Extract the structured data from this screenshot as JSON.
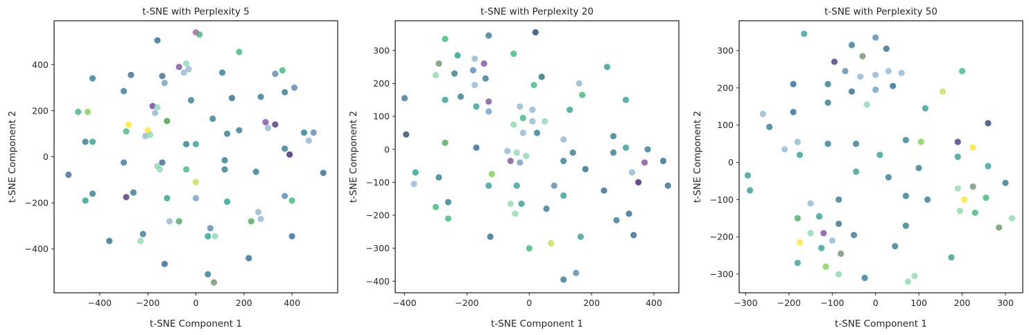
{
  "chart_data": [
    {
      "type": "scatter",
      "title": "t-SNE with Perplexity 5",
      "xlabel": "t-SNE Component 1",
      "ylabel": "t-SNE Component 2",
      "xlim": [
        -590,
        590
      ],
      "ylim": [
        -590,
        590
      ],
      "xticks": [
        -400,
        -200,
        0,
        200,
        400
      ],
      "yticks": [
        -400,
        -200,
        0,
        200,
        400
      ],
      "grid": false,
      "colormap": "viridis",
      "points": [
        [
          -530,
          -78,
          "#31688e"
        ],
        [
          -430,
          340,
          "#2a788e"
        ],
        [
          -490,
          195,
          "#35b779"
        ],
        [
          -450,
          195,
          "#7ad151"
        ],
        [
          -460,
          65,
          "#2a788e"
        ],
        [
          -430,
          65,
          "#2a9d8f"
        ],
        [
          -430,
          -160,
          "#2a788e"
        ],
        [
          -460,
          -190,
          "#1fa187"
        ],
        [
          -360,
          -365,
          "#26678e"
        ],
        [
          -300,
          285,
          "#2a788e"
        ],
        [
          -300,
          -25,
          "#2a788e"
        ],
        [
          -290,
          110,
          "#35b779"
        ],
        [
          -280,
          140,
          "#fde725"
        ],
        [
          -270,
          355,
          "#31688e"
        ],
        [
          -260,
          -155,
          "#2a788e"
        ],
        [
          -290,
          -175,
          "#46337e"
        ],
        [
          -210,
          90,
          "#8fb6d0"
        ],
        [
          -200,
          115,
          "#fde725"
        ],
        [
          -190,
          95,
          "#8ad9b0"
        ],
        [
          -180,
          220,
          "#6a3d9a"
        ],
        [
          -170,
          190,
          "#8fb6d0"
        ],
        [
          -160,
          505,
          "#26678e"
        ],
        [
          -140,
          350,
          "#31688e"
        ],
        [
          -130,
          320,
          "#6d9cc0"
        ],
        [
          -160,
          215,
          "#8ad9b0"
        ],
        [
          -160,
          -40,
          "#8ad9b0"
        ],
        [
          -150,
          -55,
          "#8ad9b0"
        ],
        [
          -140,
          -25,
          "#31688e"
        ],
        [
          -120,
          155,
          "#3a9d3a"
        ],
        [
          -120,
          -180,
          "#1fa187"
        ],
        [
          -130,
          -465,
          "#26678e"
        ],
        [
          -110,
          -280,
          "#8fb6d0"
        ],
        [
          -220,
          -335,
          "#2a788e"
        ],
        [
          -230,
          -365,
          "#8ad9b0"
        ],
        [
          -70,
          -280,
          "#3fa85a"
        ],
        [
          -40,
          405,
          "#8ad9b0"
        ],
        [
          -70,
          390,
          "#7b4a9c"
        ],
        [
          -50,
          365,
          "#8fb6d0"
        ],
        [
          -30,
          380,
          "#8fb6d0"
        ],
        [
          -20,
          245,
          "#2a788e"
        ],
        [
          -40,
          55,
          "#2a788e"
        ],
        [
          -40,
          -55,
          "#35b779"
        ],
        [
          0,
          540,
          "#a3608b"
        ],
        [
          15,
          530,
          "#35b779"
        ],
        [
          0,
          55,
          "#2a9d8f"
        ],
        [
          0,
          -110,
          "#c9dd4a"
        ],
        [
          0,
          -180,
          "#6d9cc0"
        ],
        [
          60,
          -310,
          "#5585ad"
        ],
        [
          50,
          -345,
          "#1fa187"
        ],
        [
          80,
          -345,
          "#8ad9b0"
        ],
        [
          50,
          -510,
          "#2a788e"
        ],
        [
          75,
          -545,
          "#6a8f6a"
        ],
        [
          70,
          165,
          "#2a788e"
        ],
        [
          110,
          365,
          "#2a788e"
        ],
        [
          130,
          100,
          "#2a788e"
        ],
        [
          120,
          -15,
          "#2a788e"
        ],
        [
          120,
          -55,
          "#2a788e"
        ],
        [
          130,
          -195,
          "#1fa187"
        ],
        [
          150,
          255,
          "#26678e"
        ],
        [
          180,
          455,
          "#35b779"
        ],
        [
          180,
          115,
          "#2a788e"
        ],
        [
          220,
          -440,
          "#26678e"
        ],
        [
          230,
          -280,
          "#3fa85a"
        ],
        [
          250,
          -65,
          "#2a788e"
        ],
        [
          260,
          -240,
          "#8fb6d0"
        ],
        [
          270,
          -270,
          "#8fb6d0"
        ],
        [
          270,
          260,
          "#2a788e"
        ],
        [
          290,
          150,
          "#7b4a9c"
        ],
        [
          300,
          125,
          "#8fb6d0"
        ],
        [
          330,
          140,
          "#46337e"
        ],
        [
          330,
          360,
          "#5585ad"
        ],
        [
          360,
          375,
          "#35b779"
        ],
        [
          370,
          280,
          "#2a788e"
        ],
        [
          370,
          35,
          "#2a788e"
        ],
        [
          370,
          -170,
          "#5585ad"
        ],
        [
          390,
          10,
          "#3b1e6e"
        ],
        [
          400,
          -190,
          "#35b779"
        ],
        [
          400,
          -345,
          "#26678e"
        ],
        [
          410,
          300,
          "#5585ad"
        ],
        [
          450,
          105,
          "#2a788e"
        ],
        [
          470,
          70,
          "#8fb6d0"
        ],
        [
          490,
          105,
          "#5585ad"
        ],
        [
          530,
          -70,
          "#26678e"
        ]
      ]
    },
    {
      "type": "scatter",
      "title": "t-SNE with Perplexity 20",
      "xlabel": "t-SNE Component 1",
      "ylabel": "t-SNE Component 2",
      "xlim": [
        -430,
        480
      ],
      "ylim": [
        -435,
        390
      ],
      "xticks": [
        -400,
        -200,
        0,
        200,
        400
      ],
      "yticks": [
        -400,
        -300,
        -200,
        -100,
        0,
        100,
        200,
        300
      ],
      "grid": false,
      "colormap": "viridis",
      "points": [
        [
          -400,
          155,
          "#2a788e"
        ],
        [
          -395,
          45,
          "#26426e"
        ],
        [
          -370,
          -105,
          "#8fb6d0"
        ],
        [
          -365,
          -70,
          "#1fa187"
        ],
        [
          -300,
          225,
          "#8ad9b0"
        ],
        [
          -290,
          260,
          "#6a8f6a"
        ],
        [
          -290,
          -85,
          "#2a788e"
        ],
        [
          -300,
          -175,
          "#35b779"
        ],
        [
          -270,
          335,
          "#35b779"
        ],
        [
          -270,
          150,
          "#2a9d8f"
        ],
        [
          -270,
          20,
          "#3fa85a"
        ],
        [
          -260,
          -160,
          "#2a788e"
        ],
        [
          -260,
          -210,
          "#35b779"
        ],
        [
          -240,
          230,
          "#2a788e"
        ],
        [
          -230,
          285,
          "#1fa187"
        ],
        [
          -220,
          160,
          "#2a788e"
        ],
        [
          -180,
          240,
          "#5585ad"
        ],
        [
          -175,
          275,
          "#8fb6d0"
        ],
        [
          -175,
          195,
          "#8fb6d0"
        ],
        [
          -170,
          130,
          "#2a9d8f"
        ],
        [
          -170,
          5,
          "#26678e"
        ],
        [
          -145,
          260,
          "#7b4a9c"
        ],
        [
          -140,
          215,
          "#2a788e"
        ],
        [
          -130,
          345,
          "#2a788e"
        ],
        [
          -130,
          145,
          "#7b4a9c"
        ],
        [
          -130,
          115,
          "#6d9cc0"
        ],
        [
          -130,
          -110,
          "#2a9d8f"
        ],
        [
          -120,
          -75,
          "#7ad151"
        ],
        [
          -125,
          -265,
          "#26678e"
        ],
        [
          -70,
          -5,
          "#8fb6d0"
        ],
        [
          -60,
          -35,
          "#7b4a9c"
        ],
        [
          -60,
          -165,
          "#8ad9b0"
        ],
        [
          -50,
          290,
          "#35b779"
        ],
        [
          -50,
          75,
          "#8ad9b0"
        ],
        [
          -45,
          -195,
          "#8ad9b0"
        ],
        [
          -40,
          -10,
          "#8ad9b0"
        ],
        [
          -40,
          -110,
          "#2a9d8f"
        ],
        [
          -30,
          -40,
          "#6d9cc0"
        ],
        [
          -30,
          130,
          "#8fb6d0"
        ],
        [
          -25,
          -165,
          "#2a9d8f"
        ],
        [
          -20,
          95,
          "#35b779"
        ],
        [
          -20,
          50,
          "#8fb6d0"
        ],
        [
          -10,
          -20,
          "#8ad9b0"
        ],
        [
          0,
          -300,
          "#35b779"
        ],
        [
          10,
          120,
          "#8fb6d0"
        ],
        [
          10,
          85,
          "#8fb6d0"
        ],
        [
          15,
          195,
          "#35b779"
        ],
        [
          20,
          355,
          "#1f3d6b"
        ],
        [
          25,
          50,
          "#2a788e"
        ],
        [
          40,
          220,
          "#1f6f6f"
        ],
        [
          50,
          85,
          "#8ad9b0"
        ],
        [
          55,
          -180,
          "#2a788e"
        ],
        [
          70,
          -285,
          "#c9dd4a"
        ],
        [
          80,
          -110,
          "#5585ad"
        ],
        [
          110,
          30,
          "#8fb6d0"
        ],
        [
          110,
          -35,
          "#2a788e"
        ],
        [
          110,
          -140,
          "#2a9d8f"
        ],
        [
          110,
          -395,
          "#2a788e"
        ],
        [
          130,
          120,
          "#2a9d8f"
        ],
        [
          140,
          -10,
          "#2a788e"
        ],
        [
          150,
          -375,
          "#5585ad"
        ],
        [
          160,
          200,
          "#8fb6d0"
        ],
        [
          165,
          -265,
          "#2a9d8f"
        ],
        [
          170,
          165,
          "#35b779"
        ],
        [
          180,
          -60,
          "#26678e"
        ],
        [
          240,
          -125,
          "#26678e"
        ],
        [
          250,
          250,
          "#2a9d8f"
        ],
        [
          270,
          40,
          "#2a788e"
        ],
        [
          270,
          -10,
          "#2a788e"
        ],
        [
          280,
          -215,
          "#2a788e"
        ],
        [
          310,
          150,
          "#2a9d8f"
        ],
        [
          310,
          5,
          "#2a9d8f"
        ],
        [
          320,
          -195,
          "#26678e"
        ],
        [
          330,
          -70,
          "#8fb6d0"
        ],
        [
          335,
          -260,
          "#26678e"
        ],
        [
          350,
          -100,
          "#3b1e6e"
        ],
        [
          370,
          -40,
          "#7b4a9c"
        ],
        [
          380,
          0,
          "#2a788e"
        ],
        [
          430,
          -35,
          "#26678e"
        ],
        [
          445,
          -110,
          "#26678e"
        ]
      ]
    },
    {
      "type": "scatter",
      "title": "t-SNE with Perplexity 50",
      "xlabel": "t-SNE Component 1",
      "ylabel": "t-SNE Component 2",
      "xlim": [
        -315,
        340
      ],
      "ylim": [
        -350,
        380
      ],
      "xticks": [
        -300,
        -200,
        -100,
        0,
        100,
        200,
        300
      ],
      "yticks": [
        -300,
        -200,
        -100,
        0,
        100,
        200,
        300
      ],
      "grid": false,
      "colormap": "viridis",
      "points": [
        [
          -295,
          -35,
          "#2a9d8f"
        ],
        [
          -290,
          -75,
          "#2a9d8f"
        ],
        [
          -260,
          130,
          "#8fb6d0"
        ],
        [
          -245,
          95,
          "#2a788e"
        ],
        [
          -210,
          35,
          "#8fb6d0"
        ],
        [
          -190,
          210,
          "#26678e"
        ],
        [
          -190,
          135,
          "#26678e"
        ],
        [
          -180,
          55,
          "#8fb6d0"
        ],
        [
          -180,
          -150,
          "#3fa85a"
        ],
        [
          -180,
          -270,
          "#2a9d8f"
        ],
        [
          -175,
          -215,
          "#fde725"
        ],
        [
          -175,
          20,
          "#2a9d8f"
        ],
        [
          -165,
          345,
          "#2a9d8f"
        ],
        [
          -150,
          -110,
          "#8fb6d0"
        ],
        [
          -150,
          -190,
          "#8ad9b0"
        ],
        [
          -130,
          -145,
          "#2a9d8f"
        ],
        [
          -125,
          -230,
          "#2a9d8f"
        ],
        [
          -120,
          -190,
          "#7b4a9c"
        ],
        [
          -115,
          -280,
          "#7ad151"
        ],
        [
          -110,
          210,
          "#2a788e"
        ],
        [
          -110,
          160,
          "#2a788e"
        ],
        [
          -110,
          50,
          "#2a788e"
        ],
        [
          -100,
          -210,
          "#8fb6d0"
        ],
        [
          -95,
          270,
          "#46337e"
        ],
        [
          -85,
          -100,
          "#2a788e"
        ],
        [
          -85,
          -165,
          "#31688e"
        ],
        [
          -80,
          -245,
          "#6a8f6a"
        ],
        [
          -85,
          -300,
          "#8ad9b0"
        ],
        [
          -70,
          245,
          "#5585ad"
        ],
        [
          -55,
          315,
          "#2a788e"
        ],
        [
          -55,
          190,
          "#26678e"
        ],
        [
          -50,
          -195,
          "#2a788e"
        ],
        [
          -45,
          50,
          "#2a788e"
        ],
        [
          -45,
          -25,
          "#2a9d8f"
        ],
        [
          -35,
          230,
          "#8fb6d0"
        ],
        [
          -30,
          285,
          "#6a8f6a"
        ],
        [
          -20,
          155,
          "#8ad9b0"
        ],
        [
          -25,
          -310,
          "#2a788e"
        ],
        [
          0,
          335,
          "#5585ad"
        ],
        [
          0,
          235,
          "#8fb6d0"
        ],
        [
          0,
          195,
          "#6d9cc0"
        ],
        [
          10,
          20,
          "#2a9d8f"
        ],
        [
          25,
          305,
          "#26678e"
        ],
        [
          30,
          245,
          "#8fb6d0"
        ],
        [
          30,
          -40,
          "#2a788e"
        ],
        [
          40,
          205,
          "#26678e"
        ],
        [
          45,
          -225,
          "#2a788e"
        ],
        [
          60,
          240,
          "#8fb6d0"
        ],
        [
          70,
          60,
          "#2a788e"
        ],
        [
          70,
          -90,
          "#2a788e"
        ],
        [
          70,
          -170,
          "#2a788e"
        ],
        [
          75,
          -320,
          "#8ad9b0"
        ],
        [
          90,
          -305,
          "#8ad9b0"
        ],
        [
          100,
          -15,
          "#2a788e"
        ],
        [
          105,
          55,
          "#7ad151"
        ],
        [
          115,
          145,
          "#2a9d8f"
        ],
        [
          120,
          -100,
          "#2a788e"
        ],
        [
          155,
          190,
          "#c9dd4a"
        ],
        [
          175,
          -255,
          "#2a9d8f"
        ],
        [
          190,
          55,
          "#46337e"
        ],
        [
          190,
          15,
          "#2a9d8f"
        ],
        [
          190,
          -70,
          "#8ad9b0"
        ],
        [
          195,
          -130,
          "#8ad9b0"
        ],
        [
          200,
          245,
          "#35b779"
        ],
        [
          205,
          -100,
          "#fde725"
        ],
        [
          225,
          40,
          "#fde725"
        ],
        [
          225,
          -65,
          "#6a8f6a"
        ],
        [
          230,
          -135,
          "#35b779"
        ],
        [
          255,
          -95,
          "#35b779"
        ],
        [
          260,
          105,
          "#1f3d6b"
        ],
        [
          260,
          -10,
          "#2a9d8f"
        ],
        [
          285,
          -175,
          "#6a8f6a"
        ],
        [
          300,
          -55,
          "#2a788e"
        ],
        [
          315,
          -150,
          "#8ad9b0"
        ]
      ]
    }
  ]
}
